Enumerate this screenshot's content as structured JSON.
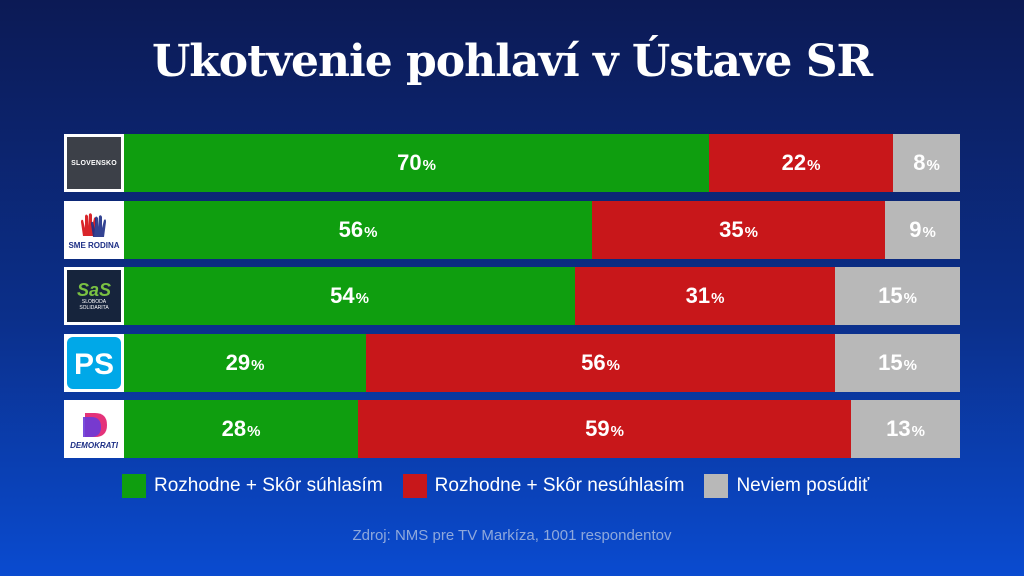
{
  "chart_data": {
    "type": "bar",
    "orientation": "horizontal",
    "stacked": true,
    "title": "Ukotvenie pohlaví v Ústave SR",
    "categories": [
      "SLOVENSKO",
      "SME RODINA",
      "SaS",
      "PS",
      "DEMOKRATI"
    ],
    "series": [
      {
        "name": "Rozhodne + Skôr súhlasím",
        "color": "#0f9e0f",
        "values": [
          70,
          56,
          54,
          29,
          28
        ]
      },
      {
        "name": "Rozhodne + Skôr nesúhlasím",
        "color": "#c8171a",
        "values": [
          22,
          35,
          31,
          56,
          59
        ]
      },
      {
        "name": "Neviem posúdiť",
        "color": "#b8b8b8",
        "values": [
          8,
          9,
          15,
          15,
          13
        ]
      }
    ],
    "unit": "%",
    "xlim": [
      0,
      100
    ],
    "legend": "bottom"
  },
  "logos": {
    "slovensko": "SLOVENSKO",
    "smerodina": "SME RODINA",
    "sas_big": "SaS",
    "sas_small": "SLOBODA\nSOLIDARITA",
    "ps": "PS",
    "demokrati": "DEMOKRATI"
  },
  "source": "Zdroj: NMS pre TV Markíza, 1001 respondentov"
}
